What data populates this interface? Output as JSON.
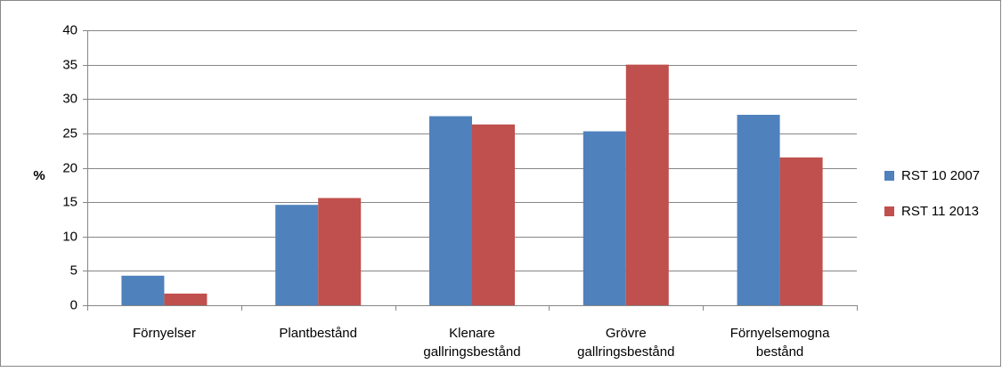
{
  "chart_data": {
    "type": "bar",
    "categories": [
      [
        "Förnyelser"
      ],
      [
        "Plantbestånd"
      ],
      [
        "Klenare",
        "gallringsbestånd"
      ],
      [
        "Grövre",
        "gallringsbestånd"
      ],
      [
        "Förnyelsemogna",
        "bestånd"
      ]
    ],
    "series": [
      {
        "name": "RST 10 2007",
        "color": "#4F81BD",
        "values": [
          4.3,
          14.6,
          27.5,
          25.3,
          27.7
        ]
      },
      {
        "name": "RST 11 2013",
        "color": "#C0504D",
        "values": [
          1.7,
          15.6,
          26.3,
          35.0,
          21.5
        ]
      }
    ],
    "ylabel": "%",
    "xlabel": "",
    "title": "",
    "ylim": [
      0,
      40
    ],
    "yticks": [
      0,
      5,
      10,
      15,
      20,
      25,
      30,
      35,
      40
    ],
    "grid": true,
    "legend_position": "right"
  }
}
